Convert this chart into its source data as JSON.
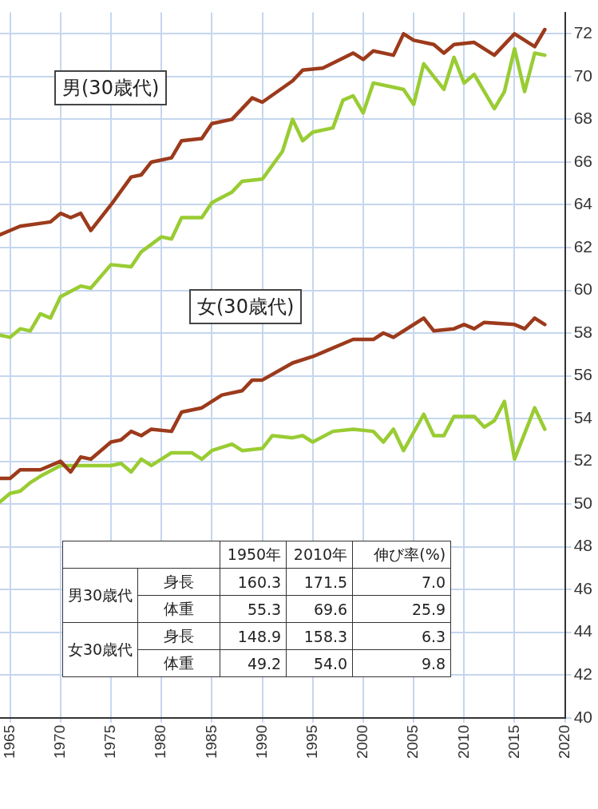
{
  "chart_data": {
    "type": "line",
    "xlim": [
      1964,
      2020
    ],
    "xticks": [
      1965,
      1970,
      1975,
      1980,
      1985,
      1990,
      1995,
      2000,
      2005,
      2010,
      2015,
      2020
    ],
    "ylim": [
      40,
      73
    ],
    "yticks": [
      40,
      42,
      44,
      46,
      48,
      50,
      52,
      54,
      56,
      58,
      60,
      62,
      64,
      66,
      68,
      70,
      72
    ],
    "grid": true,
    "legend": false,
    "marker": "none",
    "line_style": "solid",
    "annotations": [
      "男(30歳代)",
      "女(30歳代)",
      "1950年",
      "2010年",
      "伸び率(%)",
      "男30歳代",
      "身長",
      "160.3",
      "171.5",
      "7.0",
      "体重",
      "55.3",
      "69.6",
      "25.9",
      "女30歳代",
      "身長",
      "148.9",
      "158.3",
      "6.3",
      "体重",
      "49.2",
      "54.0",
      "9.8"
    ],
    "series": [
      {
        "color": "#9c3a1c",
        "x": [
          1964,
          1966,
          1969,
          1970,
          1971,
          1972,
          1973,
          1975,
          1977,
          1978,
          1979,
          1981,
          1982,
          1984,
          1985,
          1987,
          1989,
          1990,
          1993,
          1994,
          1996,
          1999,
          2000,
          2001,
          2003,
          2004,
          2005,
          2007,
          2008,
          2009,
          2011,
          2013,
          2015,
          2017,
          2018
        ],
        "values": [
          62.6,
          63.0,
          63.2,
          63.6,
          63.4,
          63.6,
          62.8,
          64.0,
          65.3,
          65.4,
          66.0,
          66.2,
          67.0,
          67.1,
          67.8,
          68.0,
          69.0,
          68.8,
          69.8,
          70.3,
          70.4,
          71.1,
          70.8,
          71.2,
          71.0,
          72.0,
          71.7,
          71.5,
          71.1,
          71.5,
          71.6,
          71.0,
          72.0,
          71.4,
          72.2
        ]
      },
      {
        "color": "#99cc33",
        "x": [
          1964,
          1965,
          1966,
          1967,
          1968,
          1969,
          1970,
          1972,
          1973,
          1975,
          1977,
          1978,
          1980,
          1981,
          1982,
          1984,
          1985,
          1987,
          1988,
          1990,
          1992,
          1993,
          1994,
          1995,
          1997,
          1998,
          1999,
          2000,
          2001,
          2003,
          2004,
          2005,
          2006,
          2008,
          2009,
          2010,
          2011,
          2013,
          2014,
          2015,
          2016,
          2017,
          2018
        ],
        "values": [
          57.9,
          57.8,
          58.2,
          58.1,
          58.9,
          58.7,
          59.7,
          60.2,
          60.1,
          61.2,
          61.1,
          61.8,
          62.5,
          62.4,
          63.4,
          63.4,
          64.1,
          64.6,
          65.1,
          65.2,
          66.5,
          68.0,
          67.0,
          67.4,
          67.6,
          68.9,
          69.1,
          68.3,
          69.7,
          69.5,
          69.4,
          68.7,
          70.6,
          69.4,
          70.9,
          69.7,
          70.1,
          68.5,
          69.3,
          71.3,
          69.3,
          71.1,
          71.0
        ]
      },
      {
        "color": "#9c3a1c",
        "x": [
          1964,
          1965,
          1966,
          1968,
          1970,
          1971,
          1972,
          1973,
          1975,
          1976,
          1977,
          1978,
          1979,
          1981,
          1982,
          1984,
          1986,
          1988,
          1989,
          1990,
          1993,
          1995,
          1996,
          1999,
          2001,
          2002,
          2003,
          2006,
          2007,
          2009,
          2010,
          2011,
          2012,
          2015,
          2016,
          2017,
          2018
        ],
        "values": [
          51.2,
          51.2,
          51.6,
          51.6,
          52.0,
          51.5,
          52.2,
          52.1,
          52.9,
          53.0,
          53.4,
          53.2,
          53.5,
          53.4,
          54.3,
          54.5,
          55.1,
          55.3,
          55.8,
          55.8,
          56.6,
          56.9,
          57.1,
          57.7,
          57.7,
          58.0,
          57.8,
          58.7,
          58.1,
          58.2,
          58.4,
          58.2,
          58.5,
          58.4,
          58.2,
          58.7,
          58.4
        ]
      },
      {
        "color": "#99cc33",
        "x": [
          1964,
          1965,
          1966,
          1967,
          1968,
          1970,
          1972,
          1975,
          1976,
          1977,
          1978,
          1979,
          1981,
          1983,
          1984,
          1985,
          1987,
          1988,
          1990,
          1991,
          1993,
          1994,
          1995,
          1997,
          1999,
          2001,
          2002,
          2003,
          2004,
          2006,
          2007,
          2008,
          2009,
          2011,
          2012,
          2013,
          2014,
          2015,
          2017,
          2018
        ],
        "values": [
          50.1,
          50.5,
          50.6,
          51.0,
          51.3,
          51.8,
          51.8,
          51.8,
          51.9,
          51.5,
          52.1,
          51.8,
          52.4,
          52.4,
          52.1,
          52.5,
          52.8,
          52.5,
          52.6,
          53.2,
          53.1,
          53.2,
          52.9,
          53.4,
          53.5,
          53.4,
          52.9,
          53.5,
          52.5,
          54.2,
          53.2,
          53.2,
          54.1,
          54.1,
          53.6,
          53.9,
          54.8,
          52.1,
          54.5,
          53.5
        ]
      }
    ]
  }
}
